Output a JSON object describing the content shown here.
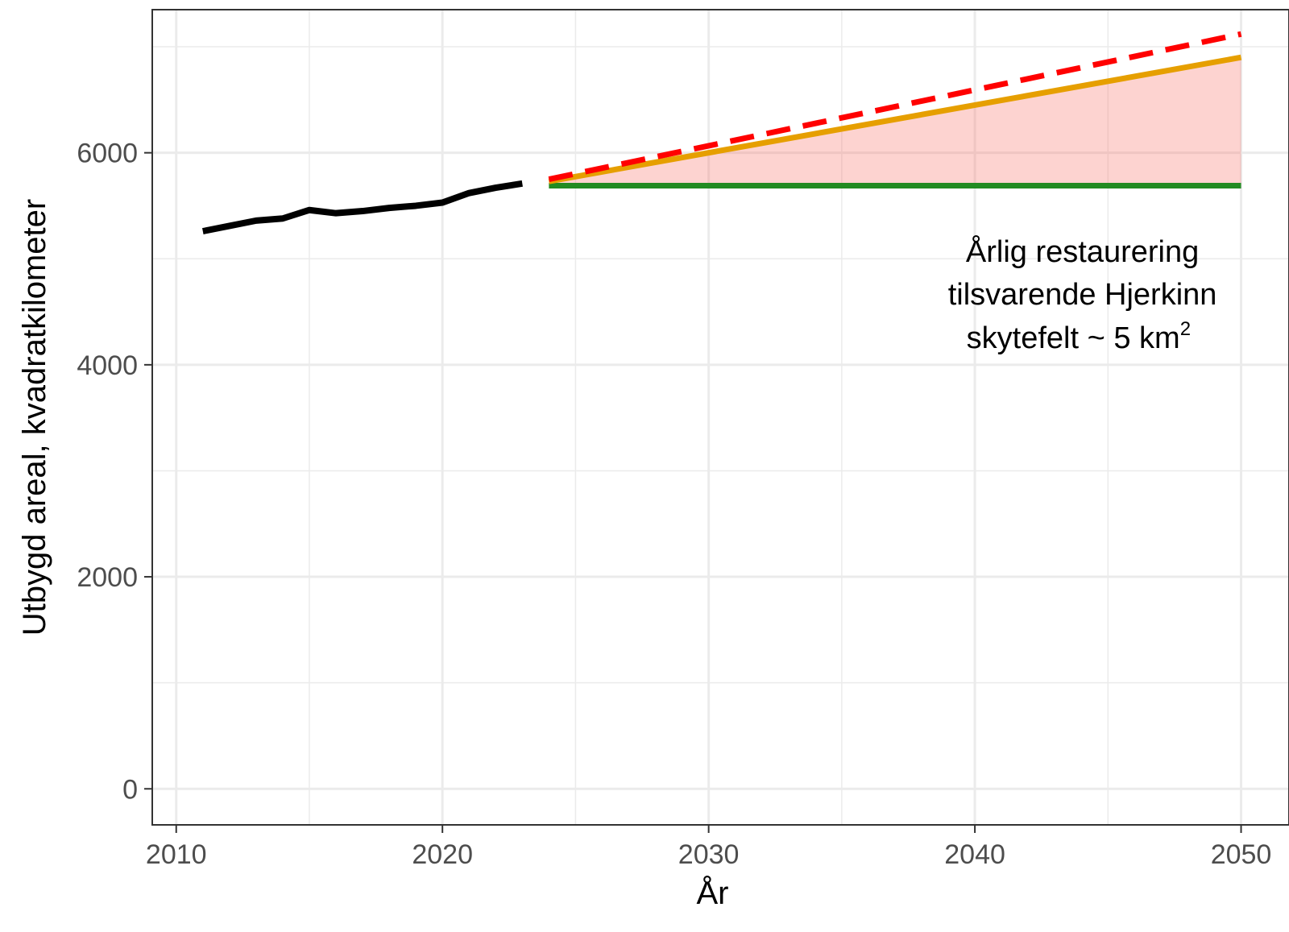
{
  "chart_data": {
    "type": "line",
    "title": "",
    "xlabel": "År",
    "ylabel": "Utbygd areal, kvadratkilometer",
    "xlim": [
      2009.1,
      2051.8
    ],
    "ylim": [
      -340,
      7350
    ],
    "x_ticks": [
      2010,
      2020,
      2030,
      2040,
      2050
    ],
    "x_tick_labels": [
      "2010",
      "2020",
      "2030",
      "2040",
      "2050"
    ],
    "y_ticks": [
      0,
      2000,
      4000,
      6000
    ],
    "y_tick_labels": [
      "0",
      "2000",
      "4000",
      "6000"
    ],
    "grid": true,
    "legend": "none",
    "series": [
      {
        "color": "#000000",
        "style": "solid",
        "x": [
          2011,
          2012,
          2013,
          2014,
          2015,
          2016,
          2017,
          2018,
          2019,
          2020,
          2021,
          2022,
          2023
        ],
        "values": [
          5260,
          5310,
          5360,
          5380,
          5460,
          5430,
          5450,
          5480,
          5500,
          5530,
          5620,
          5670,
          5710
        ]
      },
      {
        "color": "#ff0000",
        "style": "dashed",
        "x": [
          2024,
          2050
        ],
        "values": [
          5750,
          7120
        ]
      },
      {
        "color": "#e69f00",
        "style": "solid",
        "x": [
          2024,
          2050
        ],
        "values": [
          5730,
          6900
        ]
      },
      {
        "color": "#228b22",
        "style": "solid",
        "x": [
          2024,
          2050
        ],
        "values": [
          5690,
          5690
        ]
      }
    ],
    "shaded_area": {
      "color": "#f8766d",
      "x": [
        2024,
        2050
      ],
      "lower": [
        5690,
        5690
      ],
      "upper": [
        5730,
        6900
      ]
    },
    "annotation": {
      "lines": [
        "Årlig restaurering",
        "tilsvarende Hjerkinn",
        "skytefelt ~ 5 km",
        "2"
      ],
      "x": 2044.2,
      "y": 4400
    }
  }
}
